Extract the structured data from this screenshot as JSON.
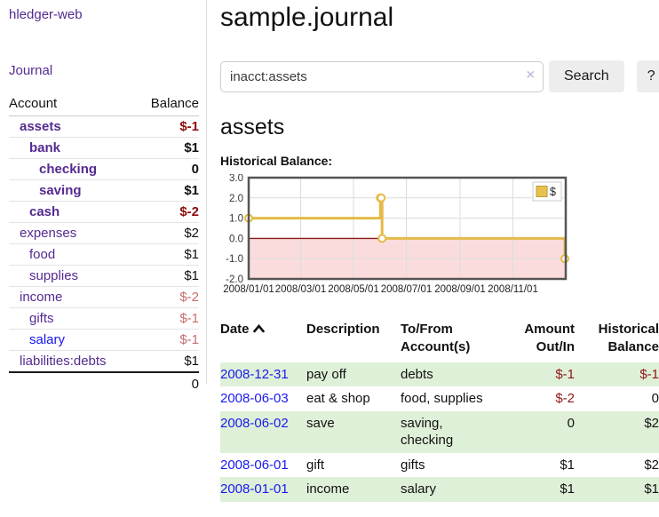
{
  "app": {
    "title": "hledger-web",
    "nav": {
      "journal": "Journal"
    }
  },
  "sidebar": {
    "headers": {
      "account": "Account",
      "balance": "Balance"
    },
    "accounts": [
      {
        "name": "assets",
        "balance": "$-1",
        "depth": 0
      },
      {
        "name": "bank",
        "balance": "$1",
        "depth": 1
      },
      {
        "name": "checking",
        "balance": "0",
        "depth": 2
      },
      {
        "name": "saving",
        "balance": "$1",
        "depth": 2
      },
      {
        "name": "cash",
        "balance": "$-2",
        "depth": 1
      },
      {
        "name": "expenses",
        "balance": "$2",
        "depth": 0
      },
      {
        "name": "food",
        "balance": "$1",
        "depth": 1
      },
      {
        "name": "supplies",
        "balance": "$1",
        "depth": 1
      },
      {
        "name": "income",
        "balance": "$-2",
        "depth": 0
      },
      {
        "name": "gifts",
        "balance": "$-1",
        "depth": 1
      },
      {
        "name": "salary",
        "balance": "$-1",
        "depth": 1
      },
      {
        "name": "liabilities:debts",
        "balance": "$1",
        "depth": 0
      }
    ],
    "total": "0"
  },
  "main": {
    "title": "sample.journal",
    "search": {
      "value": "inacct:assets",
      "clear_icon": "×",
      "button_label": "Search",
      "help_label": "?"
    },
    "account_heading": "assets",
    "chart_label": "Historical Balance:"
  },
  "chart_data": {
    "type": "line",
    "title": "Historical Balance:",
    "x_start": "2008-01-01",
    "x_end": "2009-01-01",
    "y_ticks": [
      3.0,
      2.0,
      1.0,
      0.0,
      -1.0,
      -2.0
    ],
    "ylim": [
      -2,
      3
    ],
    "x_ticks": [
      "2008/01/01",
      "2008/03/01",
      "2008/05/01",
      "2008/07/01",
      "2008/09/01",
      "2008/11/01"
    ],
    "grid": true,
    "legend": {
      "label": "$",
      "position": "top-right",
      "swatch_color": "#e9c24d"
    },
    "colors": {
      "line": "#e5ba47",
      "negative_region": "#fbdcdc",
      "zero_line": "#8c1a1a",
      "grid": "#dcdcdc",
      "border": "#555555"
    },
    "series": [
      {
        "name": "$",
        "step": "after",
        "points": [
          [
            "2008-01-01",
            1
          ],
          [
            "2008-06-01",
            2
          ],
          [
            "2008-06-02",
            2
          ],
          [
            "2008-06-03",
            0
          ],
          [
            "2008-12-31",
            -1
          ]
        ]
      }
    ]
  },
  "register": {
    "headers": {
      "date": "Date",
      "description": "Description",
      "accounts": "To/From\nAccount(s)",
      "amount": "Amount\nOut/In",
      "balance": "Historical\nBalance"
    },
    "rows": [
      {
        "date": "2008-12-31",
        "description": "pay off",
        "accounts": "debts",
        "amount": "$-1",
        "balance": "$-1"
      },
      {
        "date": "2008-06-03",
        "description": "eat & shop",
        "accounts": "food, supplies",
        "amount": "$-2",
        "balance": "0"
      },
      {
        "date": "2008-06-02",
        "description": "save",
        "accounts": "saving,\nchecking",
        "amount": "0",
        "balance": "$2"
      },
      {
        "date": "2008-06-01",
        "description": "gift",
        "accounts": "gifts",
        "amount": "$1",
        "balance": "$2"
      },
      {
        "date": "2008-01-01",
        "description": "income",
        "accounts": "salary",
        "amount": "$1",
        "balance": "$1"
      }
    ]
  }
}
